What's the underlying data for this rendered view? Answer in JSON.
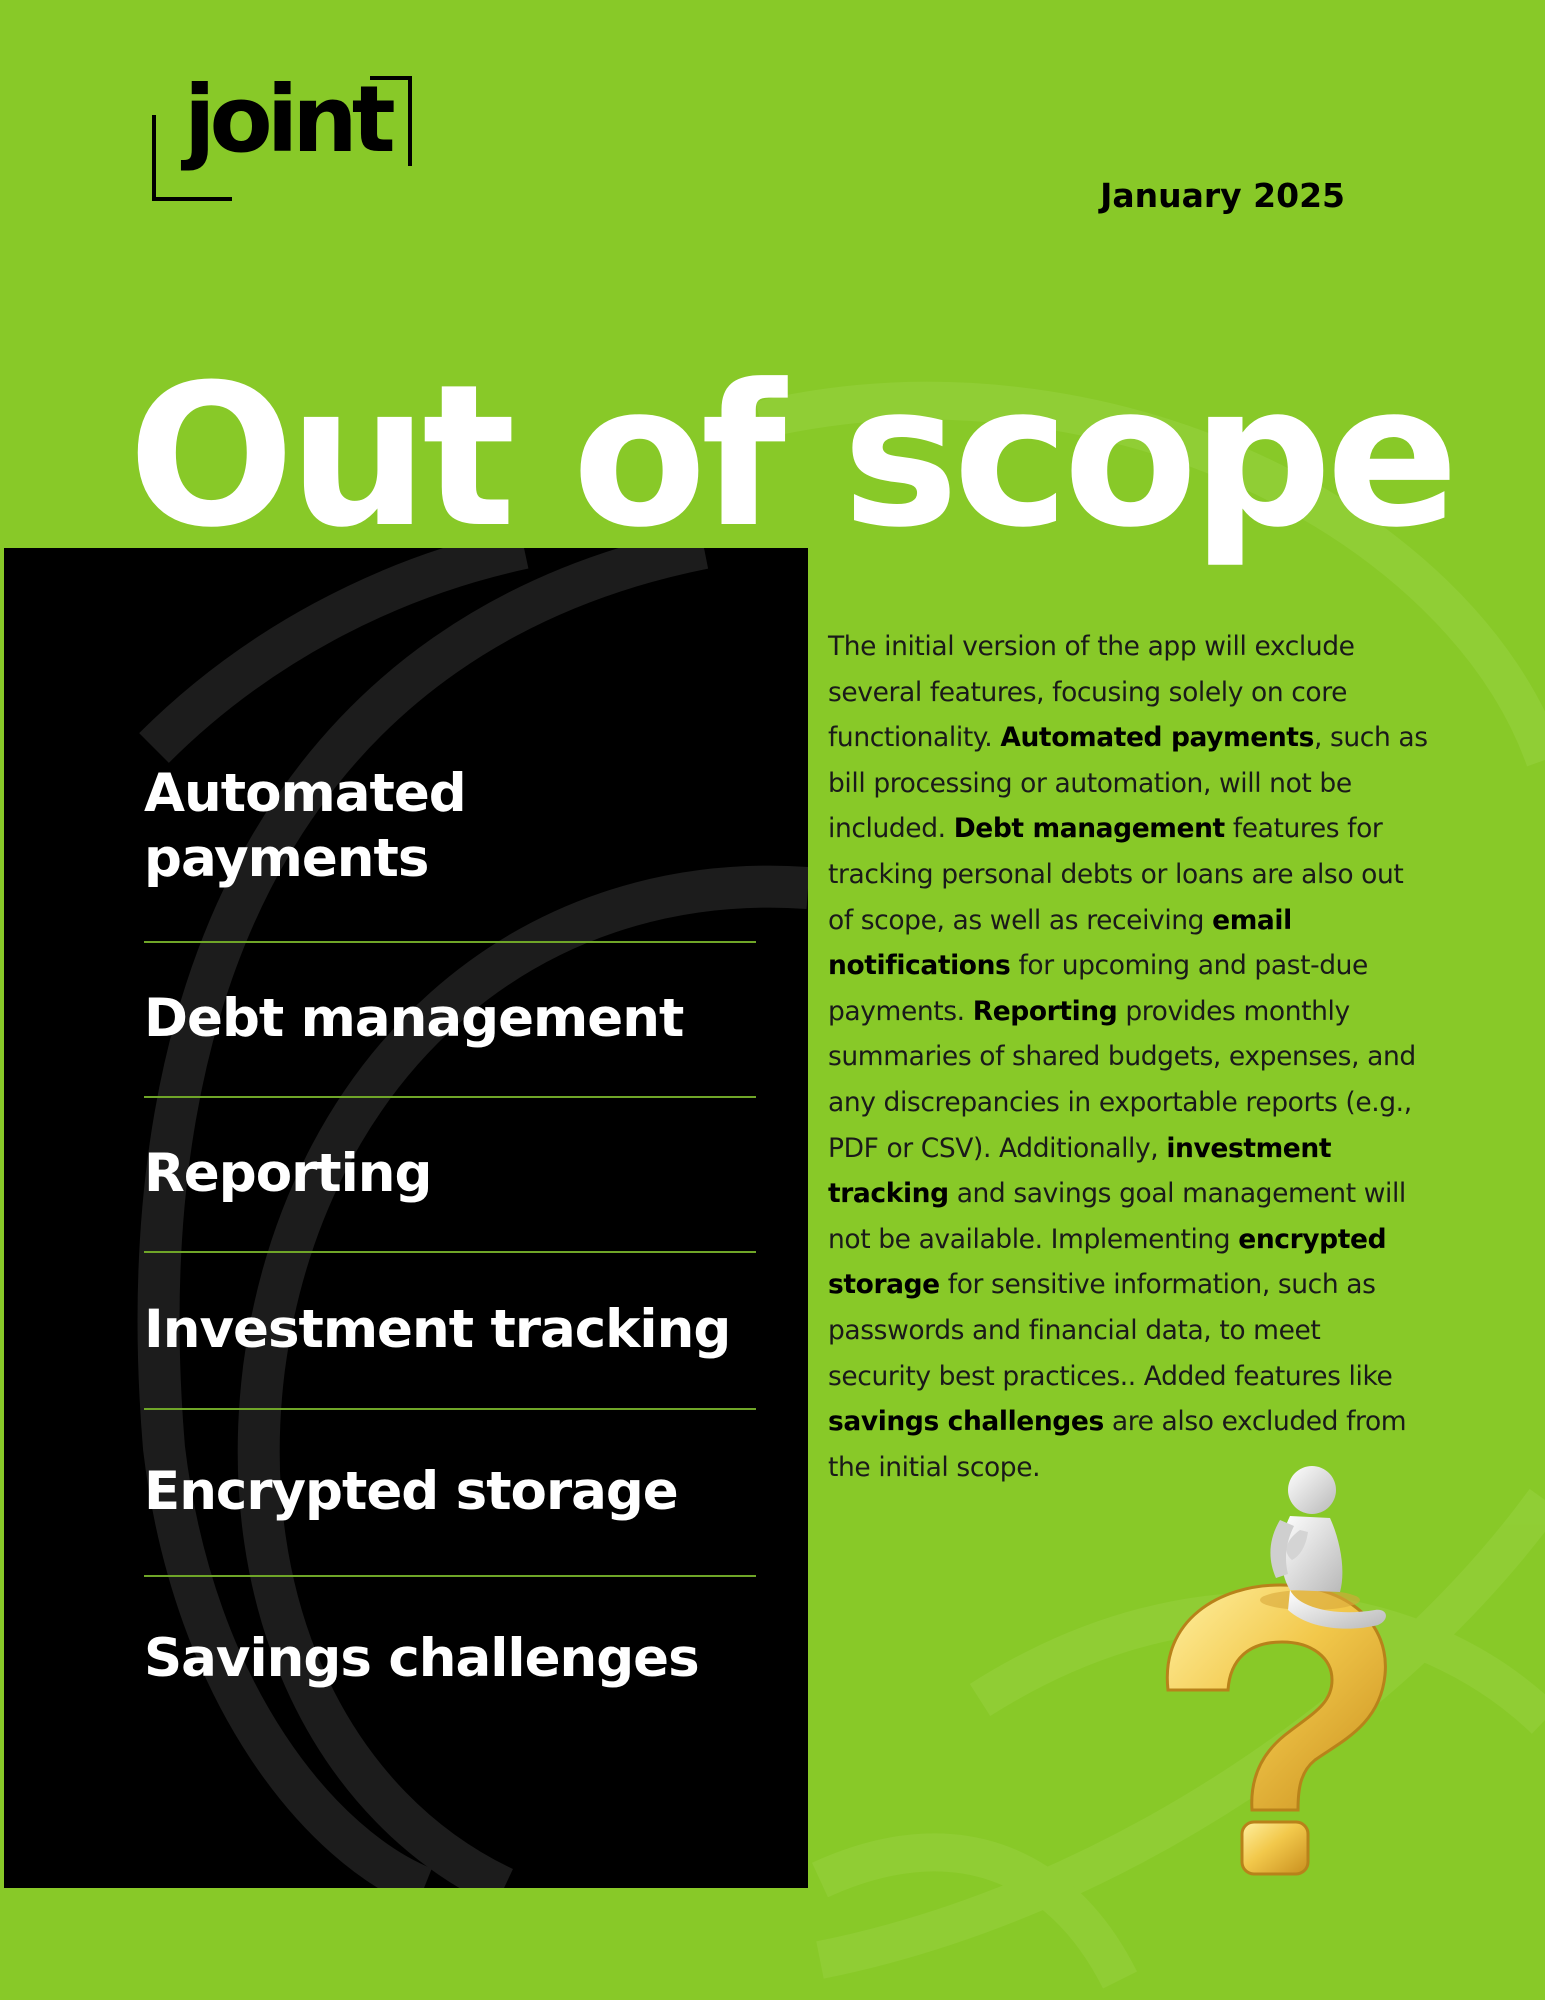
{
  "logo": {
    "text": "joint"
  },
  "header": {
    "date": "January 2025"
  },
  "title": "Out of scope",
  "items": [
    "Automated payments",
    "Debt management",
    "Reporting",
    "Investment tracking",
    "Encrypted storage",
    "Savings challenges"
  ],
  "description": {
    "segments": [
      {
        "text": "The initial version of the app will exclude several features, focusing solely on core functionality. ",
        "bold": false
      },
      {
        "text": "Automated payments",
        "bold": true
      },
      {
        "text": ", such as bill processing or automation, will not be included. ",
        "bold": false
      },
      {
        "text": "Debt management",
        "bold": true
      },
      {
        "text": " features for tracking personal debts or loans are also out of scope, as well as receiving ",
        "bold": false
      },
      {
        "text": "email notifications",
        "bold": true
      },
      {
        "text": " for upcoming and past-due payments. ",
        "bold": false
      },
      {
        "text": "Reporting",
        "bold": true
      },
      {
        "text": " provides monthly summaries of shared budgets, expenses, and any discrepancies in exportable reports (e.g., PDF or CSV). Additionally, ",
        "bold": false
      },
      {
        "text": "investment tracking",
        "bold": true
      },
      {
        "text": " and savings goal management will not be available. Implementing ",
        "bold": false
      },
      {
        "text": "encrypted storage",
        "bold": true
      },
      {
        "text": " for sensitive information, such as passwords and financial data, to meet security best practices.. Added features like ",
        "bold": false
      },
      {
        "text": "savings challenges",
        "bold": true
      },
      {
        "text": " are also excluded from the initial scope.",
        "bold": false
      }
    ]
  },
  "illustration": {
    "icon": "question-mark-thinker-icon"
  },
  "colors": {
    "background": "#88c928",
    "panel": "#000000",
    "divider": "#6fa528",
    "accent": "#f2c84b"
  }
}
